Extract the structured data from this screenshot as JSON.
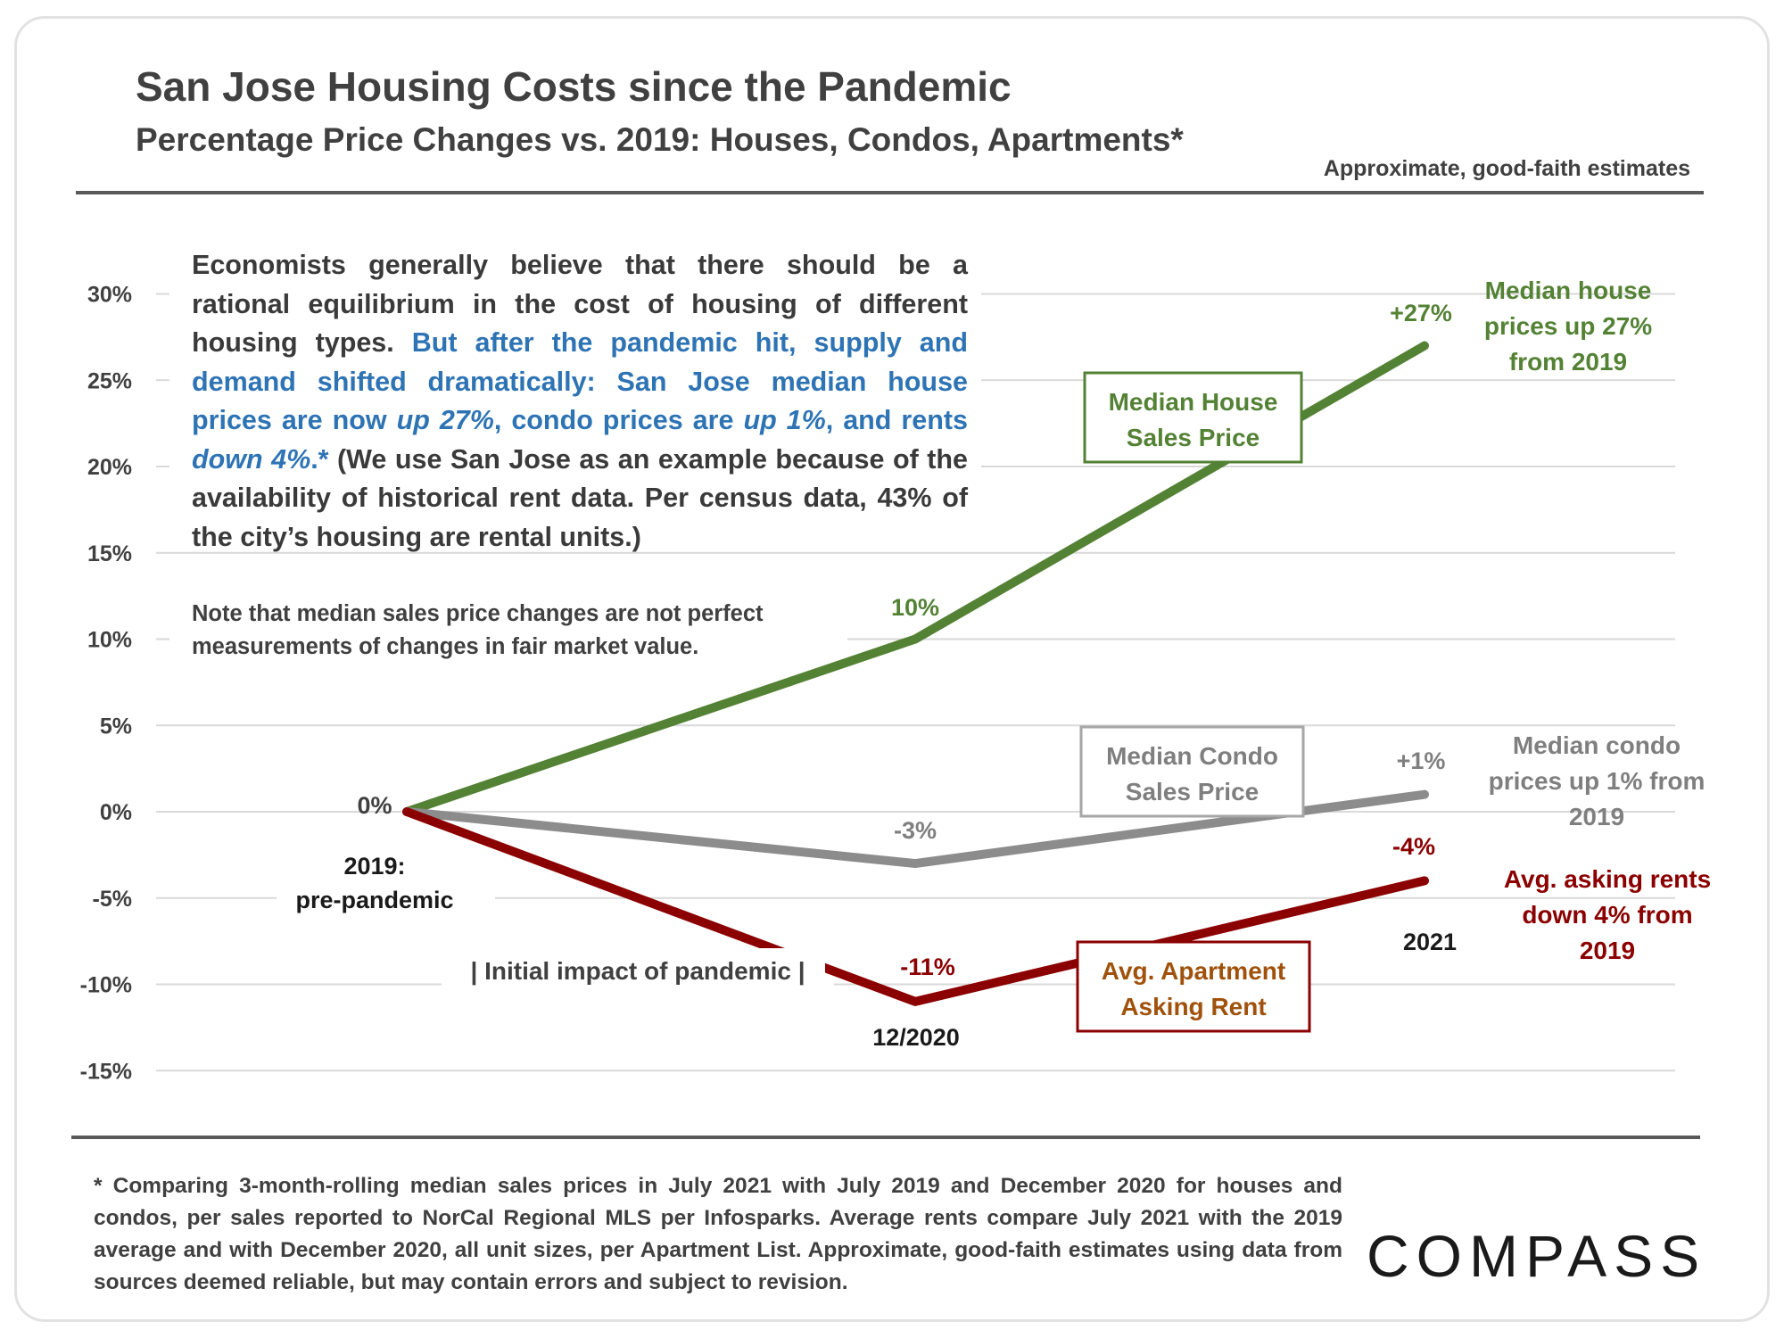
{
  "header": {
    "title": "San Jose Housing Costs since the Pandemic",
    "subtitle": "Percentage Price Changes vs. 2019: Houses, Condos, Apartments*",
    "estimate_note": "Approximate, good-faith estimates"
  },
  "narrative": {
    "part1": "Economists generally believe that there should be a rational equilibrium in the cost of housing of different housing types. ",
    "part2": "But after the pandemic hit, supply and demand shifted dramatically: San Jose median house prices are now ",
    "em1": "up 27%",
    "part3": ", condo prices are ",
    "em2": "up 1%",
    "part4": ", and rents ",
    "em3": "down 4%",
    "part5": ".*",
    "part6": " (We use San Jose as an example because of the availability of historical rent data. Per census data, 43% of the city’s housing are rental units.)"
  },
  "note": "Note that median sales price changes are not perfect measurements of changes in fair market value.",
  "footnote": "* Comparing 3-month-rolling median sales prices in July 2021 with July 2019 and December 2020 for houses and condos, per sales reported to NorCal Regional MLS per Infosparks. Average rents compare July 2021 with the 2019 average and with December 2020, all unit sizes, per Apartment List. Approximate, good-faith estimates using data from sources deemed reliable, but may contain errors and subject to revision.",
  "logo": "COMPASS",
  "colors": {
    "house": "#548235",
    "condo": "#8c8c8c",
    "rent": "#8b0000",
    "rent_label_text": "#a0520c",
    "axis_text": "#404040",
    "grid": "#d9d9d9"
  },
  "chart_data": {
    "type": "line",
    "x": [
      "2019: pre-pandemic",
      "12/2020",
      "2021"
    ],
    "x_labels": [
      "2019:",
      "pre-pandemic",
      "12/2020",
      "2021"
    ],
    "ylim": [
      -15,
      30
    ],
    "yticks": [
      30,
      25,
      20,
      15,
      10,
      5,
      0,
      -5,
      -10,
      -15
    ],
    "ytick_labels": [
      "30%",
      "25%",
      "20%",
      "15%",
      "10%",
      "5%",
      "0%",
      "-5%",
      "-10%",
      "-15%"
    ],
    "grid": true,
    "series": [
      {
        "key": "house",
        "name": "Median House Sales Price",
        "name_lines": [
          "Median House",
          "Sales Price"
        ],
        "values": [
          0,
          10,
          27
        ],
        "point_labels": [
          "",
          "10%",
          "+27%"
        ],
        "annotation": [
          "Median house",
          "prices up 27%",
          "from 2019"
        ]
      },
      {
        "key": "condo",
        "name": "Median Condo Sales Price",
        "name_lines": [
          "Median Condo",
          "Sales Price"
        ],
        "values": [
          0,
          -3,
          1
        ],
        "point_labels": [
          "0%",
          "-3%",
          "+1%"
        ],
        "annotation": [
          "Median condo",
          "prices up 1% from",
          "2019"
        ]
      },
      {
        "key": "rent",
        "name": "Avg. Apartment Asking Rent",
        "name_lines": [
          "Avg. Apartment",
          "Asking Rent"
        ],
        "values": [
          0,
          -11,
          -4
        ],
        "point_labels": [
          "",
          "-11%",
          "-4%"
        ],
        "annotation": [
          "Avg. asking rents",
          "down 4% from",
          "2019"
        ]
      }
    ],
    "annotations": [
      "| Initial impact of pandemic |"
    ]
  }
}
